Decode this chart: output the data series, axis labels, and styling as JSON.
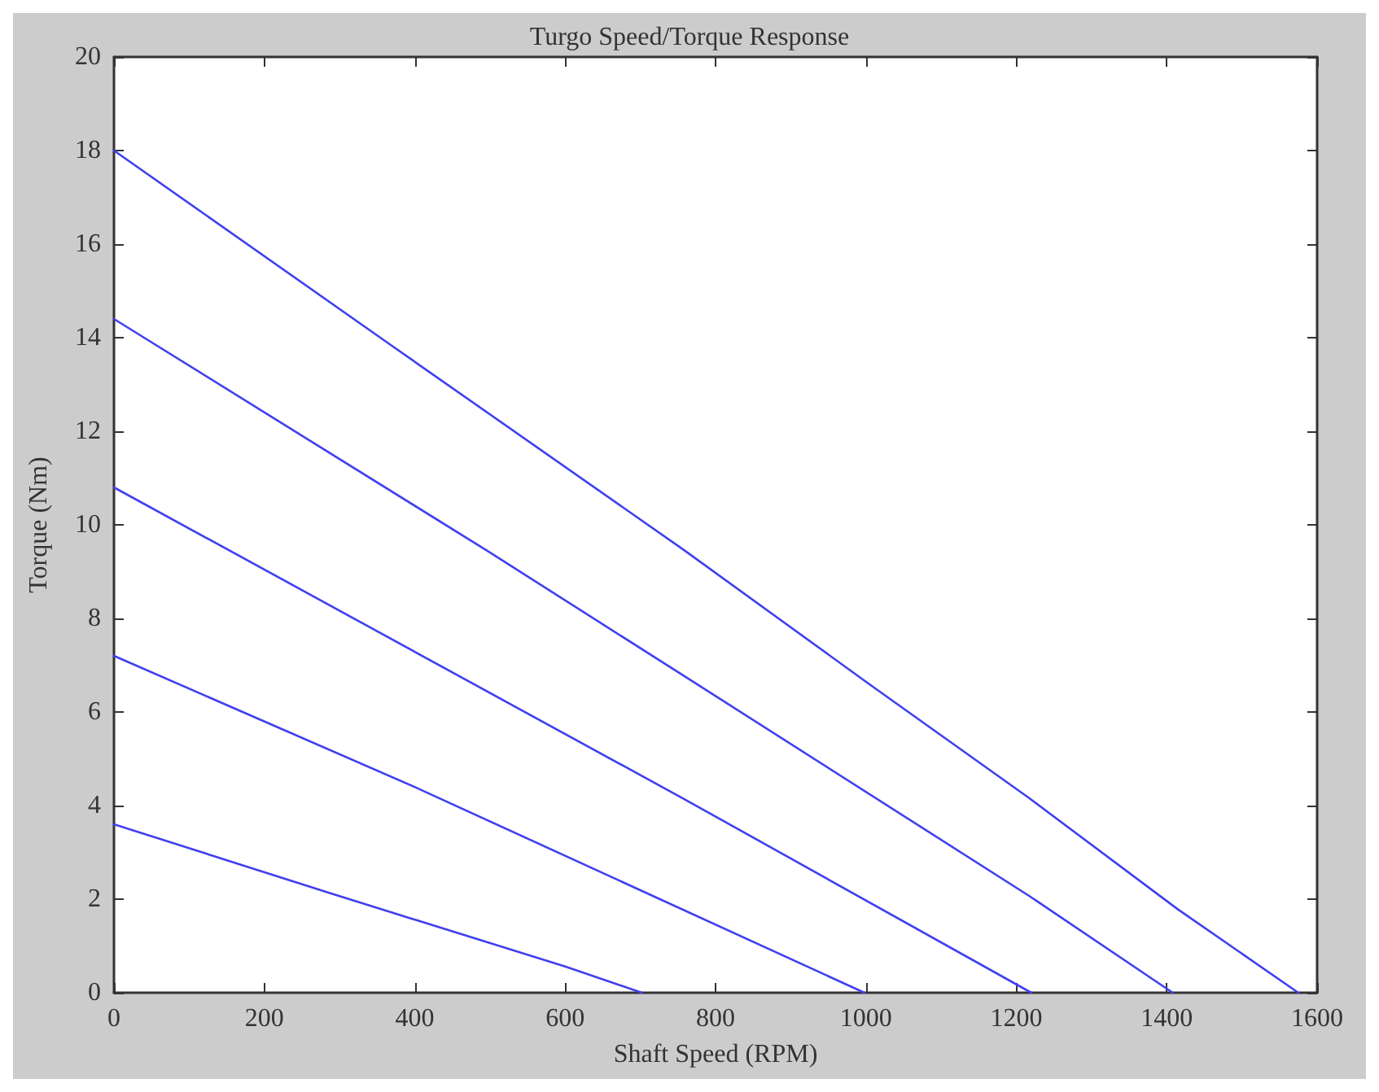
{
  "chart_data": {
    "type": "line",
    "title": "Turgo Speed/Torque Response",
    "xlabel": "Shaft Speed (RPM)",
    "ylabel": "Torque (Nm)",
    "xlim": [
      0,
      1600
    ],
    "xticks": [
      0,
      200,
      400,
      600,
      800,
      1000,
      1200,
      1400,
      1600
    ],
    "ylim": [
      0,
      20
    ],
    "yticks": [
      0,
      2,
      4,
      6,
      8,
      10,
      12,
      14,
      16,
      18,
      20
    ],
    "grid": false,
    "legend": false,
    "marker": "none",
    "line_style": "solid",
    "series": [
      {
        "color": "#4040f0",
        "x": [
          0,
          372,
          759,
          1004,
          1217,
          1415,
          1575
        ],
        "values": [
          18,
          13.8,
          9.45,
          6.6,
          4.16,
          1.78,
          0
        ]
      },
      {
        "color": "#4040f0",
        "x": [
          0,
          496,
          761,
          1217,
          1408
        ],
        "values": [
          14.4,
          9.45,
          6.74,
          2.07,
          0
        ]
      },
      {
        "color": "#4040f0",
        "x": [
          0,
          756,
          1220
        ],
        "values": [
          10.8,
          4.16,
          0
        ]
      },
      {
        "color": "#4040f0",
        "x": [
          0,
          401,
          998
        ],
        "values": [
          7.2,
          4.39,
          0
        ]
      },
      {
        "color": "#4040f0",
        "x": [
          0,
          287,
          600,
          702
        ],
        "values": [
          3.6,
          2.13,
          0.56,
          0
        ]
      }
    ]
  }
}
